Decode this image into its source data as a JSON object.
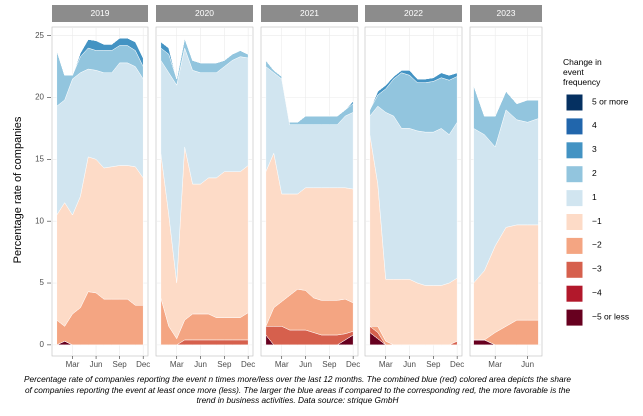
{
  "chart_data": {
    "type": "area",
    "stacked": true,
    "y_label": "Percentage rate of companies",
    "legend_title": "Change in event frequency",
    "caption": "Percentage rate of companies reporting the event n times more/less over the last 12 months. The combined blue (red) colored area depicts the share of companies reporting the event at least once more (less). The larger the blue areas if compared to the corresponding red, the more favorable is the trend in business activities. Data source: strique GmbH",
    "ylim": [
      -0.9,
      25.7
    ],
    "yticks": [
      0,
      5,
      10,
      15,
      20,
      25
    ],
    "grid": true,
    "series": [
      {
        "name": "5 or more",
        "color": "#053061"
      },
      {
        "name": "4",
        "color": "#2166ac"
      },
      {
        "name": "3",
        "color": "#4393c3"
      },
      {
        "name": "2",
        "color": "#92c5de"
      },
      {
        "name": "1",
        "color": "#d1e5f0"
      },
      {
        "name": "−1",
        "color": "#fddbc7"
      },
      {
        "name": "−2",
        "color": "#f4a582"
      },
      {
        "name": "−3",
        "color": "#d6604d"
      },
      {
        "name": "−4",
        "color": "#b2182b"
      },
      {
        "name": "−5 or less",
        "color": "#67001f"
      }
    ],
    "facets": [
      {
        "label": "2019",
        "categories": [
          null,
          null,
          "Mar",
          null,
          null,
          "Jun",
          null,
          null,
          "Sep",
          null,
          null,
          "Dec"
        ],
        "values": [
          [
            0,
            0,
            0,
            0,
            0,
            0,
            0,
            0,
            0,
            0,
            0,
            0
          ],
          [
            0,
            0,
            0,
            0,
            0,
            0,
            0,
            0,
            0,
            0,
            0,
            0
          ],
          [
            0,
            0,
            0,
            0.3,
            0.7,
            0.8,
            0.5,
            0.5,
            0.6,
            0.6,
            0.7,
            0.7
          ],
          [
            4.5,
            2,
            0.3,
            1.3,
            1.7,
            1.6,
            1.8,
            1.8,
            1.4,
            1.4,
            1.3,
            1
          ],
          [
            8.8,
            8.3,
            11,
            10,
            7.1,
            7.2,
            7.7,
            7.6,
            8.3,
            8.3,
            8.1,
            8
          ],
          [
            8.5,
            10,
            8,
            9,
            10.9,
            10.8,
            10.6,
            10.7,
            10.8,
            10.8,
            11.2,
            10.3
          ],
          [
            2,
            1.2,
            2.5,
            3,
            4.3,
            4.2,
            3.7,
            3.7,
            3.7,
            3.7,
            3.2,
            3.2
          ],
          [
            0,
            0,
            0,
            0,
            0,
            0,
            0,
            0,
            0,
            0,
            0,
            0
          ],
          [
            0,
            0,
            0,
            0,
            0,
            0,
            0,
            0,
            0,
            0,
            0,
            0
          ],
          [
            0,
            0.3,
            0,
            0,
            0,
            0,
            0,
            0,
            0,
            0,
            0,
            0
          ]
        ]
      },
      {
        "label": "2020",
        "categories": [
          null,
          null,
          "Mar",
          null,
          null,
          "Jun",
          null,
          null,
          "Sep",
          null,
          null,
          "Dec"
        ],
        "values": [
          [
            0,
            0,
            0,
            0,
            0,
            0,
            0,
            0,
            0,
            0,
            0,
            0
          ],
          [
            0,
            0,
            0,
            0,
            0,
            0,
            0,
            0,
            0,
            0,
            0,
            0
          ],
          [
            0.5,
            0.5,
            0,
            0,
            0,
            0,
            0,
            0,
            0,
            0,
            0,
            0
          ],
          [
            1,
            1.5,
            0.5,
            0.8,
            0.8,
            0.8,
            0.8,
            0.8,
            0.5,
            0.5,
            0.5,
            0.3
          ],
          [
            7.5,
            11.5,
            16,
            8,
            9.2,
            9,
            8.5,
            8.5,
            8.5,
            9,
            9.3,
            8.7
          ],
          [
            11.7,
            9,
            4.5,
            14,
            10.5,
            10.5,
            11,
            11.3,
            11.8,
            11.8,
            11.8,
            11.9
          ],
          [
            3.8,
            1.5,
            0.5,
            1.6,
            2.1,
            2.1,
            2.1,
            1.8,
            1.8,
            1.8,
            1.8,
            2.2
          ],
          [
            0,
            0,
            0,
            0.4,
            0.4,
            0.4,
            0.4,
            0.4,
            0.4,
            0.4,
            0.4,
            0.4
          ],
          [
            0,
            0,
            0,
            0,
            0,
            0,
            0,
            0,
            0,
            0,
            0,
            0
          ],
          [
            0,
            0,
            0,
            0,
            0,
            0,
            0,
            0,
            0,
            0,
            0,
            0
          ]
        ]
      },
      {
        "label": "2021",
        "categories": [
          null,
          null,
          "Mar",
          null,
          null,
          "Jun",
          null,
          null,
          "Sep",
          null,
          null,
          "Dec"
        ],
        "values": [
          [
            0,
            0,
            0,
            0,
            0,
            0,
            0,
            0,
            0,
            0,
            0,
            0
          ],
          [
            0,
            0,
            0,
            0,
            0,
            0,
            0,
            0,
            0,
            0,
            0,
            0
          ],
          [
            0,
            0,
            0,
            0,
            0,
            0,
            0,
            0,
            0,
            0,
            0,
            0.2
          ],
          [
            0.5,
            0.2,
            0.2,
            0.2,
            0.2,
            0.7,
            0.7,
            0.7,
            0.7,
            0.7,
            0.5,
            0.7
          ],
          [
            8.5,
            6.5,
            9.3,
            5.6,
            5.6,
            5.1,
            5.1,
            5.1,
            5.1,
            5.1,
            5.8,
            6.2
          ],
          [
            12.5,
            12.5,
            8.7,
            8.2,
            7.7,
            8.3,
            8.9,
            9.1,
            9.1,
            9.1,
            9,
            9.2
          ],
          [
            0,
            1.5,
            2,
            2.8,
            3.3,
            3.2,
            2.8,
            2.8,
            2.8,
            2.8,
            2.8,
            2.3
          ],
          [
            0.7,
            1.5,
            1.5,
            1.2,
            1.2,
            1.2,
            1,
            0.8,
            0.8,
            0.8,
            0.5,
            0.3
          ],
          [
            0,
            0,
            0,
            0,
            0,
            0,
            0,
            0,
            0,
            0,
            0,
            0
          ],
          [
            0.8,
            0,
            0,
            0,
            0,
            0,
            0,
            0,
            0,
            0,
            0.4,
            0.8
          ]
        ]
      },
      {
        "label": "2022",
        "categories": [
          null,
          null,
          "Mar",
          null,
          null,
          "Jun",
          null,
          null,
          "Sep",
          null,
          null,
          "Dec"
        ],
        "values": [
          [
            0,
            0,
            0,
            0,
            0,
            0,
            0,
            0,
            0,
            0,
            0,
            0
          ],
          [
            0,
            0,
            0,
            0,
            0,
            0,
            0,
            0,
            0,
            0,
            0,
            0
          ],
          [
            0,
            0.3,
            0.3,
            0.2,
            0.2,
            0.4,
            0.3,
            0.3,
            0.3,
            0.4,
            0.4,
            0.3
          ],
          [
            0.5,
            0.9,
            1.9,
            3,
            4.5,
            4.3,
            3.9,
            4,
            4.1,
            4.1,
            4.4,
            3.7
          ],
          [
            1.5,
            6.3,
            13.5,
            13.2,
            12.2,
            12.2,
            12.3,
            12.4,
            12.4,
            12.7,
            12,
            12.6
          ],
          [
            15.5,
            11.5,
            5,
            5.3,
            5.3,
            5.3,
            5,
            4.8,
            4.8,
            4.8,
            5,
            5.1
          ],
          [
            0,
            0.5,
            0.3,
            0,
            0,
            0,
            0,
            0,
            0,
            0,
            0,
            0
          ],
          [
            0.5,
            0.5,
            0,
            0,
            0,
            0,
            0,
            0,
            0,
            0,
            0,
            0.3
          ],
          [
            0,
            0,
            0,
            0,
            0,
            0,
            0,
            0,
            0,
            0,
            0,
            0
          ],
          [
            1,
            0.5,
            0,
            0,
            0,
            0,
            0,
            0,
            0,
            0,
            0,
            0
          ]
        ]
      },
      {
        "label": "2023",
        "categories": [
          null,
          null,
          "Mar",
          null,
          null,
          "Jun",
          null
        ],
        "values": [
          [
            0,
            0,
            0,
            0,
            0,
            0,
            0
          ],
          [
            0,
            0,
            0,
            0,
            0,
            0,
            0
          ],
          [
            0,
            0,
            0,
            0,
            0,
            0,
            0
          ],
          [
            3.5,
            1.5,
            2.5,
            1.5,
            1.3,
            1.8,
            1.5
          ],
          [
            12.5,
            11,
            8,
            9.5,
            8.5,
            8.3,
            8.6
          ],
          [
            4.6,
            5.6,
            7,
            8,
            7.7,
            7.7,
            7.7
          ],
          [
            0,
            0,
            1,
            1.5,
            2,
            2,
            2
          ],
          [
            0,
            0,
            0,
            0,
            0,
            0,
            0
          ],
          [
            0,
            0,
            0,
            0,
            0,
            0,
            0
          ],
          [
            0.4,
            0.4,
            0,
            0,
            0,
            0,
            0
          ]
        ]
      }
    ]
  }
}
